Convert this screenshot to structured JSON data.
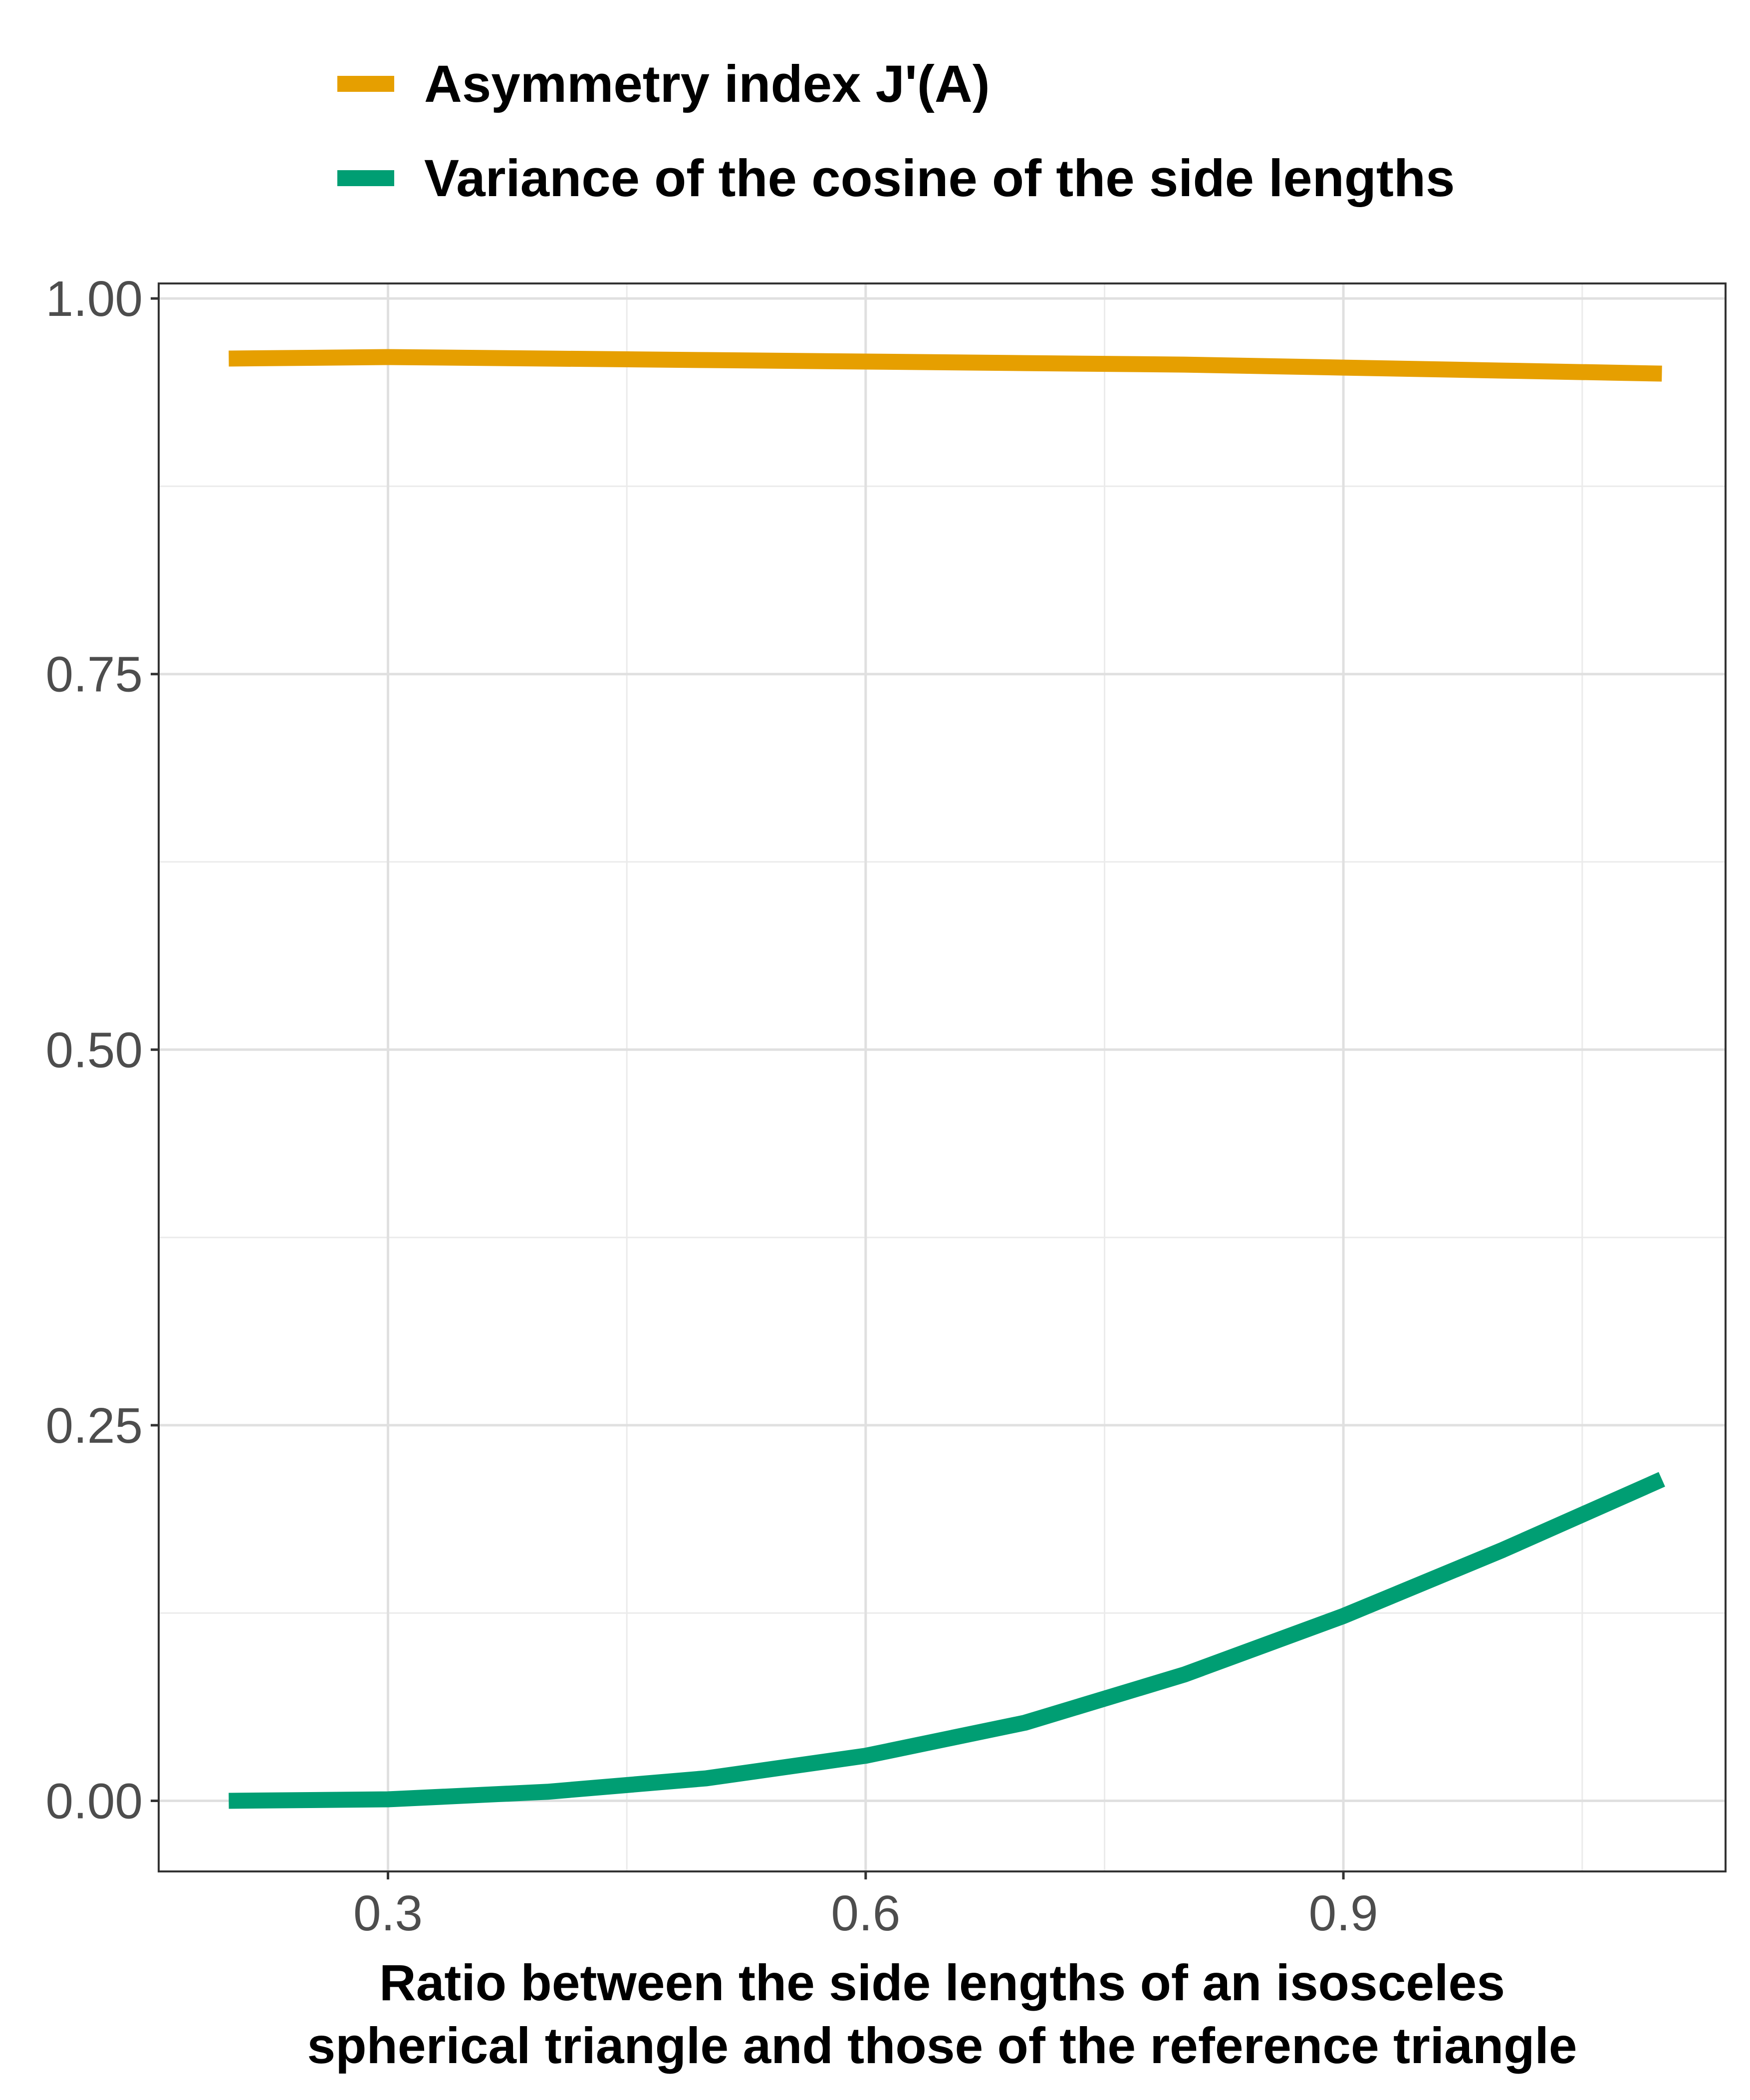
{
  "chart_data": {
    "type": "line",
    "title": "",
    "xlabel_lines": [
      "Ratio between the side lengths of an isosceles",
      "spherical triangle and those of the reference triangle"
    ],
    "ylabel": "",
    "xlim": [
      0.156,
      1.14
    ],
    "ylim": [
      -0.047,
      1.01
    ],
    "x_ticks": [
      0.3,
      0.6,
      0.9
    ],
    "x_tick_labels": [
      "0.3",
      "0.6",
      "0.9"
    ],
    "x_minor_ticks": [
      0.45,
      0.75,
      1.05
    ],
    "y_ticks": [
      0,
      0.25,
      0.5,
      0.75,
      1.0
    ],
    "y_tick_labels": [
      "0.00",
      "0.25",
      "0.50",
      "0.75",
      "1.00"
    ],
    "y_minor_ticks": [
      0.125,
      0.375,
      0.625,
      0.875
    ],
    "grid": true,
    "legend_position": "top",
    "series": [
      {
        "name": "Asymmetry index J'(A)",
        "color": "#E69F00",
        "x": [
          0.2,
          0.3,
          0.4,
          0.5,
          0.6,
          0.7,
          0.8,
          0.9,
          1.0,
          1.1
        ],
        "y": [
          0.96,
          0.961,
          0.96,
          0.959,
          0.958,
          0.957,
          0.956,
          0.954,
          0.952,
          0.95
        ]
      },
      {
        "name": "Variance of the cosine of the side lengths",
        "color": "#009E73",
        "x": [
          0.2,
          0.3,
          0.4,
          0.5,
          0.6,
          0.7,
          0.8,
          0.9,
          1.0,
          1.1
        ],
        "y": [
          0.0,
          0.001,
          0.006,
          0.015,
          0.03,
          0.052,
          0.084,
          0.123,
          0.167,
          0.214
        ]
      }
    ]
  }
}
